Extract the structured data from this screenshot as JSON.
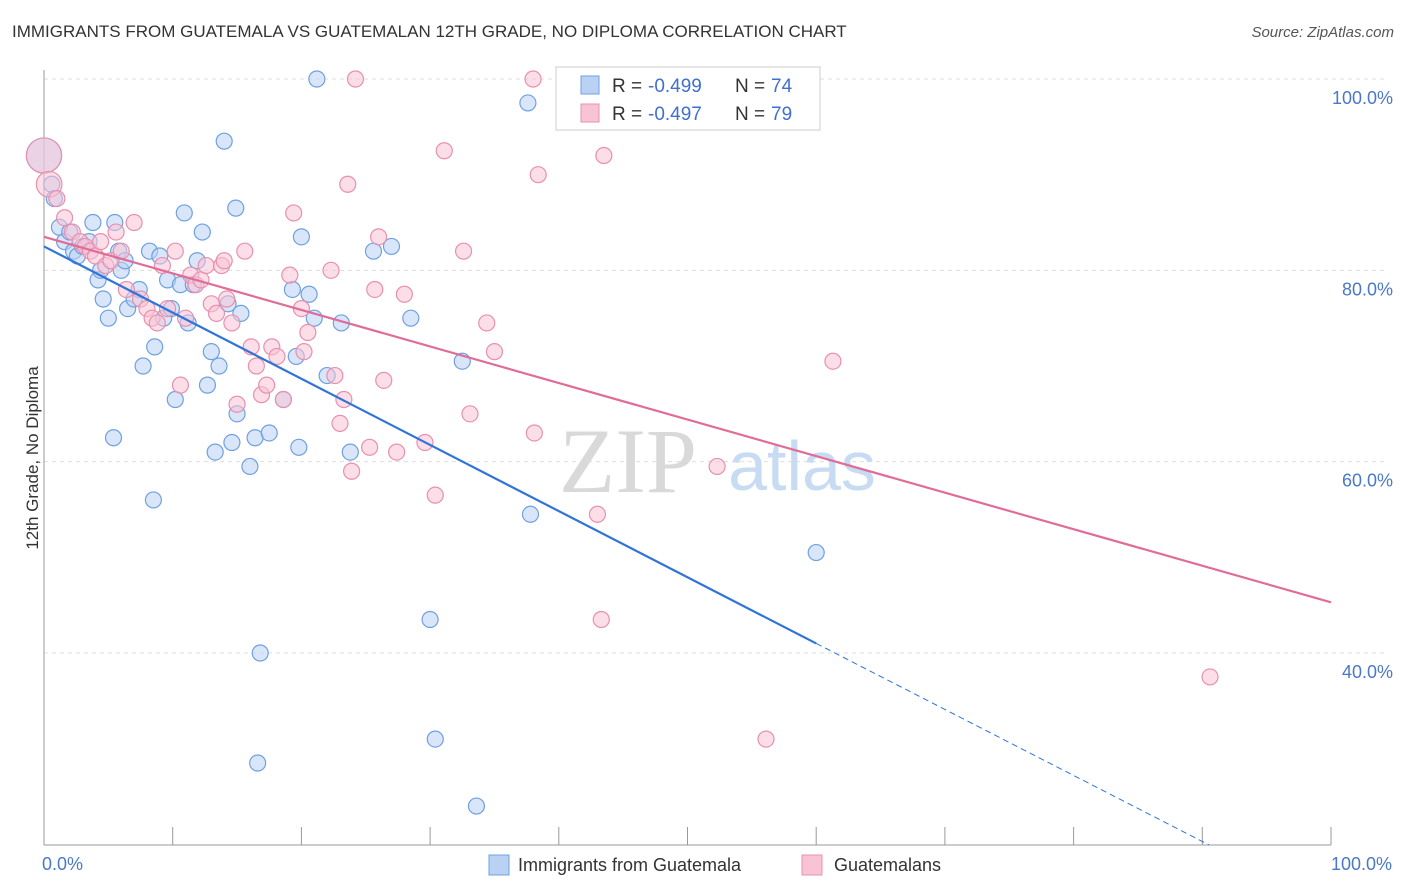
{
  "title": "IMMIGRANTS FROM GUATEMALA VS GUATEMALAN 12TH GRADE, NO DIPLOMA CORRELATION CHART",
  "source": "Source: ZipAtlas.com",
  "watermark": {
    "zip": "ZIP",
    "atlas": "atlas"
  },
  "colors": {
    "blue": "#6fa0e0",
    "blue_fill": "#b9d2f4",
    "blue_line": "#2f74d6",
    "pink": "#e890ad",
    "pink_fill": "#f7c3d5",
    "pink_line": "#e06c98"
  },
  "legend": {
    "rows": [
      {
        "r_label": "R = ",
        "r_value": "-0.499",
        "n_label": "N = ",
        "n_value": "74",
        "color": "blue"
      },
      {
        "r_label": "R = ",
        "r_value": "-0.497",
        "n_label": "N = ",
        "n_value": "79",
        "color": "pink"
      }
    ]
  },
  "chart_data": {
    "type": "scatter",
    "title": "IMMIGRANTS FROM GUATEMALA VS GUATEMALAN 12TH GRADE, NO DIPLOMA CORRELATION CHART",
    "xlabel": "",
    "ylabel": "12th Grade, No Diploma",
    "xlim": [
      0,
      100
    ],
    "ylim": [
      21,
      102
    ],
    "x_tick_labels": [
      "0.0%",
      "100.0%"
    ],
    "y_ticks": [
      {
        "value": 40,
        "label": "40.0%"
      },
      {
        "value": 60,
        "label": "60.0%"
      },
      {
        "value": 80,
        "label": "80.0%"
      },
      {
        "value": 100,
        "label": "100.0%"
      }
    ],
    "grid": true,
    "series": [
      {
        "name": "Immigrants from Guatemala",
        "color": "blue",
        "trend": {
          "x0": 0,
          "y0": 82.5,
          "x1": 60,
          "y1": 41,
          "dashed_to_x": 100,
          "dashed_to_y": 13.4
        },
        "points": [
          [
            0,
            92,
            2.2
          ],
          [
            0.6,
            89,
            1
          ],
          [
            0.8,
            87.5,
            1
          ],
          [
            1.2,
            84.5,
            1
          ],
          [
            1.6,
            83,
            1
          ],
          [
            2.0,
            84,
            1
          ],
          [
            2.3,
            82,
            1
          ],
          [
            2.6,
            81.5,
            1
          ],
          [
            3.0,
            82.5,
            1
          ],
          [
            3.5,
            83,
            1
          ],
          [
            3.8,
            85,
            1
          ],
          [
            4.2,
            79,
            1
          ],
          [
            4.4,
            80,
            1
          ],
          [
            5.0,
            75,
            1
          ],
          [
            5.5,
            85,
            1
          ],
          [
            5.8,
            82,
            1
          ],
          [
            6.0,
            80,
            1
          ],
          [
            6.3,
            81,
            1
          ],
          [
            6.5,
            76,
            1
          ],
          [
            7.0,
            77,
            1
          ],
          [
            7.4,
            78,
            1
          ],
          [
            7.7,
            70,
            1
          ],
          [
            8.2,
            82,
            1
          ],
          [
            8.6,
            72,
            1
          ],
          [
            9.0,
            81.5,
            1
          ],
          [
            9.3,
            75,
            1
          ],
          [
            9.6,
            79,
            1
          ],
          [
            9.9,
            76,
            1
          ],
          [
            10.2,
            66.5,
            1
          ],
          [
            10.6,
            78.5,
            1
          ],
          [
            10.9,
            86,
            1
          ],
          [
            11.2,
            74.5,
            1
          ],
          [
            11.6,
            78.5,
            1
          ],
          [
            11.9,
            81,
            1
          ],
          [
            12.3,
            84,
            1
          ],
          [
            12.7,
            68,
            1
          ],
          [
            13.0,
            71.5,
            1
          ],
          [
            13.3,
            61,
            1
          ],
          [
            13.6,
            70,
            1
          ],
          [
            14.0,
            93.5,
            1
          ],
          [
            14.3,
            76.5,
            1
          ],
          [
            14.6,
            62,
            1
          ],
          [
            14.9,
            86.5,
            1
          ],
          [
            15.0,
            65,
            1
          ],
          [
            15.3,
            75.5,
            1
          ],
          [
            16.0,
            59.5,
            1
          ],
          [
            16.4,
            62.5,
            1
          ],
          [
            16.8,
            40,
            1
          ],
          [
            16.6,
            28.5,
            1
          ],
          [
            17.5,
            63,
            1
          ],
          [
            18.6,
            66.5,
            1
          ],
          [
            19.3,
            78,
            1
          ],
          [
            19.6,
            71,
            1
          ],
          [
            19.8,
            61.5,
            1
          ],
          [
            20.0,
            83.5,
            1
          ],
          [
            20.6,
            77.5,
            1
          ],
          [
            21.0,
            75,
            1
          ],
          [
            21.2,
            100,
            1
          ],
          [
            22.0,
            69,
            1
          ],
          [
            23.1,
            74.5,
            1
          ],
          [
            23.8,
            61,
            1
          ],
          [
            25.6,
            82,
            1
          ],
          [
            5.4,
            62.5,
            1
          ],
          [
            8.5,
            56,
            1
          ],
          [
            27.0,
            82.5,
            1
          ],
          [
            28.5,
            75,
            1
          ],
          [
            30.0,
            43.5,
            1
          ],
          [
            30.4,
            31,
            1
          ],
          [
            32.5,
            70.5,
            1
          ],
          [
            33.6,
            24,
            1
          ],
          [
            37.6,
            97.5,
            1
          ],
          [
            37.8,
            54.5,
            1
          ],
          [
            60.0,
            50.5,
            1
          ],
          [
            4.6,
            77,
            1
          ]
        ]
      },
      {
        "name": "Guatemalans",
        "color": "pink",
        "trend": {
          "x0": 0,
          "y0": 83.5,
          "x1": 100,
          "y1": 45.3
        },
        "points": [
          [
            0,
            92,
            2.2
          ],
          [
            0.4,
            89,
            1.6
          ],
          [
            1.0,
            87.5,
            1
          ],
          [
            1.6,
            85.5,
            1
          ],
          [
            2.2,
            84,
            1
          ],
          [
            2.8,
            83,
            1
          ],
          [
            3.2,
            82.5,
            1
          ],
          [
            3.6,
            82,
            1
          ],
          [
            4.0,
            81.5,
            1
          ],
          [
            4.4,
            83,
            1
          ],
          [
            4.8,
            80.5,
            1
          ],
          [
            5.2,
            81,
            1
          ],
          [
            5.6,
            84,
            1
          ],
          [
            6.0,
            82,
            1
          ],
          [
            6.4,
            78,
            1
          ],
          [
            7.0,
            85,
            1
          ],
          [
            7.5,
            77,
            1
          ],
          [
            8.0,
            76,
            1
          ],
          [
            8.4,
            75,
            1
          ],
          [
            8.8,
            74.5,
            1
          ],
          [
            9.2,
            80.5,
            1
          ],
          [
            9.6,
            76,
            1
          ],
          [
            10.2,
            82,
            1
          ],
          [
            10.6,
            68,
            1
          ],
          [
            11.0,
            75,
            1
          ],
          [
            11.4,
            79.5,
            1
          ],
          [
            11.8,
            78.5,
            1
          ],
          [
            12.2,
            79,
            1
          ],
          [
            12.6,
            80.5,
            1
          ],
          [
            13.0,
            76.5,
            1
          ],
          [
            13.4,
            75.5,
            1
          ],
          [
            13.8,
            80.5,
            1
          ],
          [
            14.2,
            77,
            1
          ],
          [
            14.6,
            74.5,
            1
          ],
          [
            15.0,
            66,
            1
          ],
          [
            15.6,
            82,
            1
          ],
          [
            16.1,
            72,
            1
          ],
          [
            16.5,
            70,
            1
          ],
          [
            16.9,
            67,
            1
          ],
          [
            17.3,
            68,
            1
          ],
          [
            17.7,
            72,
            1
          ],
          [
            18.1,
            71,
            1
          ],
          [
            18.6,
            66.5,
            1
          ],
          [
            19.1,
            79.5,
            1
          ],
          [
            19.4,
            86,
            1
          ],
          [
            20.0,
            76,
            1
          ],
          [
            20.2,
            71.5,
            1
          ],
          [
            20.5,
            73.5,
            1
          ],
          [
            22.3,
            80,
            1
          ],
          [
            22.6,
            69,
            1
          ],
          [
            23.0,
            64,
            1
          ],
          [
            23.3,
            66.5,
            1
          ],
          [
            23.6,
            89,
            1
          ],
          [
            23.9,
            59,
            1
          ],
          [
            25.3,
            61.5,
            1
          ],
          [
            25.7,
            78,
            1
          ],
          [
            26.0,
            83.5,
            1
          ],
          [
            26.4,
            68.5,
            1
          ],
          [
            27.4,
            61,
            1
          ],
          [
            28.0,
            77.5,
            1
          ],
          [
            29.6,
            62,
            1
          ],
          [
            30.4,
            56.5,
            1
          ],
          [
            31.1,
            92.5,
            1
          ],
          [
            32.6,
            82,
            1
          ],
          [
            33.1,
            65,
            1
          ],
          [
            34.4,
            74.5,
            1
          ],
          [
            35.0,
            71.5,
            1
          ],
          [
            38.0,
            100,
            1
          ],
          [
            38.1,
            63,
            1
          ],
          [
            38.4,
            90,
            1
          ],
          [
            43.0,
            54.5,
            1
          ],
          [
            43.3,
            43.5,
            1
          ],
          [
            43.5,
            92,
            1
          ],
          [
            52.3,
            59.5,
            1
          ],
          [
            56.1,
            31,
            1
          ],
          [
            61.3,
            70.5,
            1
          ],
          [
            90.6,
            37.5,
            1
          ],
          [
            24.2,
            100,
            1
          ],
          [
            14.0,
            81,
            1
          ]
        ]
      }
    ]
  },
  "bottom_legend": [
    {
      "label": "Immigrants from Guatemala",
      "color": "blue"
    },
    {
      "label": "Guatemalans",
      "color": "pink"
    }
  ]
}
